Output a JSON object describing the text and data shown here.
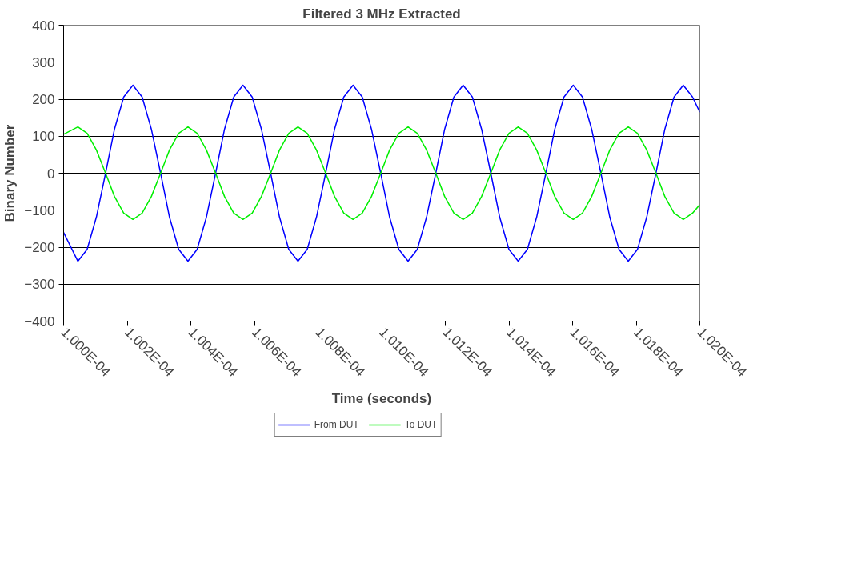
{
  "chart_data": {
    "type": "line",
    "title": "Filtered 3 MHz Extracted",
    "xlabel": "Time (seconds)",
    "ylabel": "Binary Number",
    "x": [
      0.0001,
      0.000100045,
      0.000100074,
      0.000100103,
      0.000100132,
      0.00010016,
      0.000100189,
      0.000100218,
      0.000100247,
      0.000100276,
      0.000100305,
      0.000100333,
      0.000100362,
      0.000100391,
      0.00010042,
      0.000100449,
      0.000100478,
      0.000100506,
      0.000100535,
      0.000100564,
      0.000100593,
      0.000100622,
      0.000100651,
      0.000100679,
      0.000100708,
      0.000100737,
      0.000100766,
      0.000100795,
      0.000100824,
      0.000100852,
      0.000100881,
      0.00010091,
      0.000100939,
      0.000100968,
      0.000100997,
      0.000101025,
      0.000101054,
      0.000101083,
      0.000101112,
      0.000101141,
      0.00010117,
      0.000101198,
      0.000101227,
      0.000101256,
      0.000101285,
      0.000101314,
      0.000101343,
      0.000101371,
      0.0001014,
      0.000101429,
      0.000101458,
      0.000101487,
      0.000101516,
      0.000101544,
      0.000101573,
      0.000101602,
      0.000101631,
      0.00010166,
      0.000101689,
      0.000101717,
      0.000101746,
      0.000101775,
      0.000101804,
      0.000101833,
      0.000101862,
      0.00010189,
      0.000101919,
      0.000101948,
      0.000101977,
      0.000102
    ],
    "series": [
      {
        "name": "From DUT",
        "color": "#0000ff",
        "values": [
          -160,
          -238,
          -206,
          -119,
          0,
          119,
          206,
          238,
          206,
          119,
          0,
          -119,
          -206,
          -238,
          -206,
          -119,
          0,
          119,
          206,
          238,
          206,
          119,
          0,
          -119,
          -206,
          -238,
          -206,
          -119,
          0,
          119,
          206,
          238,
          206,
          119,
          0,
          -119,
          -206,
          -238,
          -206,
          -119,
          0,
          119,
          206,
          238,
          206,
          119,
          0,
          -119,
          -206,
          -238,
          -206,
          -119,
          0,
          119,
          206,
          238,
          206,
          119,
          0,
          -119,
          -206,
          -238,
          -206,
          -119,
          0,
          119,
          206,
          238,
          206,
          165
        ]
      },
      {
        "name": "To DUT",
        "color": "#00ee00",
        "values": [
          105,
          125,
          108,
          63,
          0,
          -63,
          -108,
          -125,
          -108,
          -63,
          0,
          63,
          108,
          125,
          108,
          63,
          0,
          -63,
          -108,
          -125,
          -108,
          -63,
          0,
          63,
          108,
          125,
          108,
          63,
          0,
          -63,
          -108,
          -125,
          -108,
          -63,
          0,
          63,
          108,
          125,
          108,
          63,
          0,
          -63,
          -108,
          -125,
          -108,
          -63,
          0,
          63,
          108,
          125,
          108,
          63,
          0,
          -63,
          -108,
          -125,
          -108,
          -63,
          0,
          63,
          108,
          125,
          108,
          63,
          0,
          -63,
          -108,
          -125,
          -108,
          -85
        ]
      }
    ],
    "xlim": [
      0.0001,
      0.000102
    ],
    "xticks": [
      {
        "value": 0.0001,
        "label": "1.000E-04"
      },
      {
        "value": 0.0001002,
        "label": "1.002E-04"
      },
      {
        "value": 0.0001004,
        "label": "1.004E-04"
      },
      {
        "value": 0.0001006,
        "label": "1.006E-04"
      },
      {
        "value": 0.0001008,
        "label": "1.008E-04"
      },
      {
        "value": 0.000101,
        "label": "1.010E-04"
      },
      {
        "value": 0.0001012,
        "label": "1.012E-04"
      },
      {
        "value": 0.0001014,
        "label": "1.014E-04"
      },
      {
        "value": 0.0001016,
        "label": "1.016E-04"
      },
      {
        "value": 0.0001018,
        "label": "1.018E-04"
      },
      {
        "value": 0.000102,
        "label": "1.020E-04"
      }
    ],
    "ylim": [
      -400,
      400
    ],
    "yticks": [
      -400,
      -300,
      -200,
      -100,
      0,
      100,
      200,
      300,
      400
    ],
    "grid": "y",
    "legend": "bottom",
    "marker": "none",
    "line_style": "solid"
  }
}
